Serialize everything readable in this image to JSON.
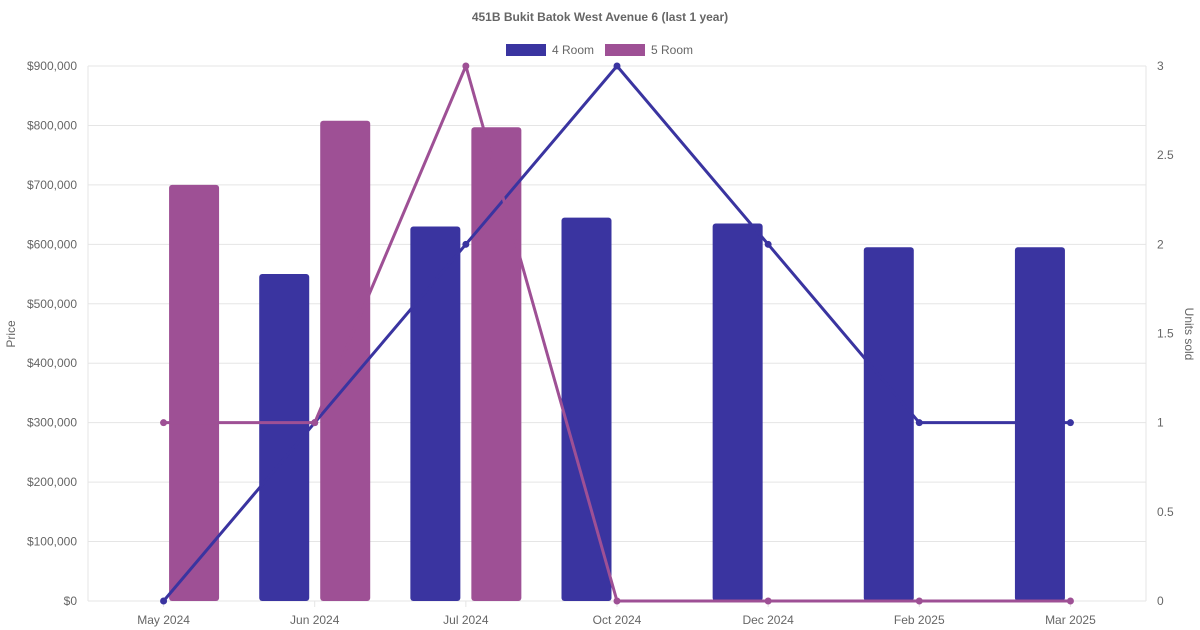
{
  "chart_data": {
    "type": "bar",
    "title": "451B Bukit Batok West Avenue 6 (last 1 year)",
    "categories": [
      "May 2024",
      "Jun 2024",
      "Jul 2024",
      "Oct 2024",
      "Dec 2024",
      "Feb 2025",
      "Mar 2025"
    ],
    "ylabel_left": "Price",
    "ylabel_right": "Units sold",
    "y_left": {
      "min": 0,
      "max": 900000,
      "ticks": [
        "$0",
        "$100,000",
        "$200,000",
        "$300,000",
        "$400,000",
        "$500,000",
        "$600,000",
        "$700,000",
        "$800,000",
        "$900,000"
      ]
    },
    "y_right": {
      "min": 0,
      "max": 3,
      "ticks": [
        "0",
        "0.5",
        "1",
        "1.5",
        "2",
        "2.5",
        "3"
      ]
    },
    "legend": {
      "position": "top",
      "entries": [
        "4 Room",
        "5 Room"
      ]
    },
    "grid": true,
    "series": [
      {
        "name": "4 Room",
        "color": "#3a34a0",
        "price": [
          null,
          550000,
          630000,
          645000,
          635000,
          595000,
          595000
        ],
        "units": [
          0,
          1,
          2,
          3,
          2,
          1,
          1
        ]
      },
      {
        "name": "5 Room",
        "color": "#9e5095",
        "price": [
          700000,
          808000,
          797000,
          null,
          null,
          null,
          null
        ],
        "units": [
          1,
          1,
          3,
          0,
          0,
          0,
          0
        ]
      }
    ]
  }
}
